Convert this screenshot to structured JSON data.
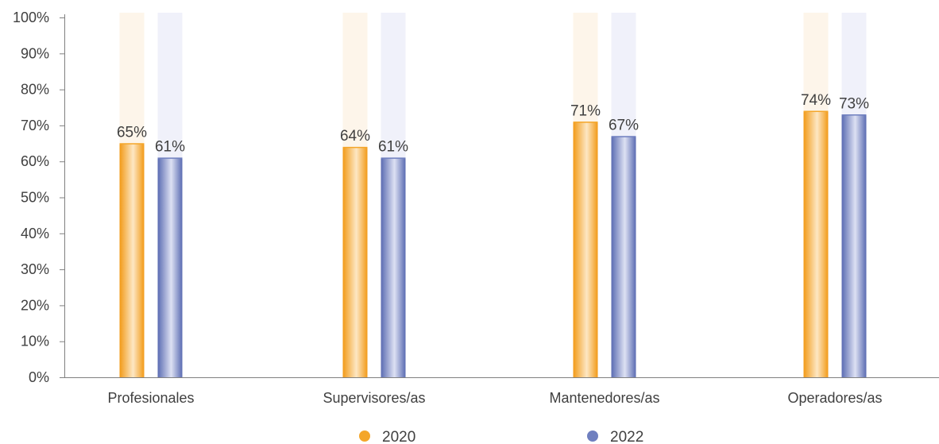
{
  "chart_data": {
    "type": "bar",
    "categories": [
      "Profesionales",
      "Supervisores/as",
      "Mantenedores/as",
      "Operadores/as"
    ],
    "series": [
      {
        "name": "2020",
        "values": [
          65,
          64,
          71,
          74
        ],
        "labels": [
          "65%",
          "64%",
          "71%",
          "74%"
        ],
        "color": "#f4a62a",
        "track_color": "#fdf5ea"
      },
      {
        "name": "2022",
        "values": [
          61,
          61,
          67,
          73
        ],
        "labels": [
          "61%",
          "61%",
          "67%",
          "73%"
        ],
        "color": "#6f7fbf",
        "track_color": "#f0f1fa"
      }
    ],
    "ylim": [
      0,
      100
    ],
    "yticks": [
      0,
      10,
      20,
      30,
      40,
      50,
      60,
      70,
      80,
      90,
      100
    ],
    "ytick_labels": [
      "0%",
      "10%",
      "20%",
      "30%",
      "40%",
      "50%",
      "60%",
      "70%",
      "80%",
      "90%",
      "100%"
    ],
    "title": "",
    "xlabel": "",
    "ylabel": "",
    "grid": false,
    "legend_position": "bottom-center",
    "axis_color": "#808080"
  }
}
